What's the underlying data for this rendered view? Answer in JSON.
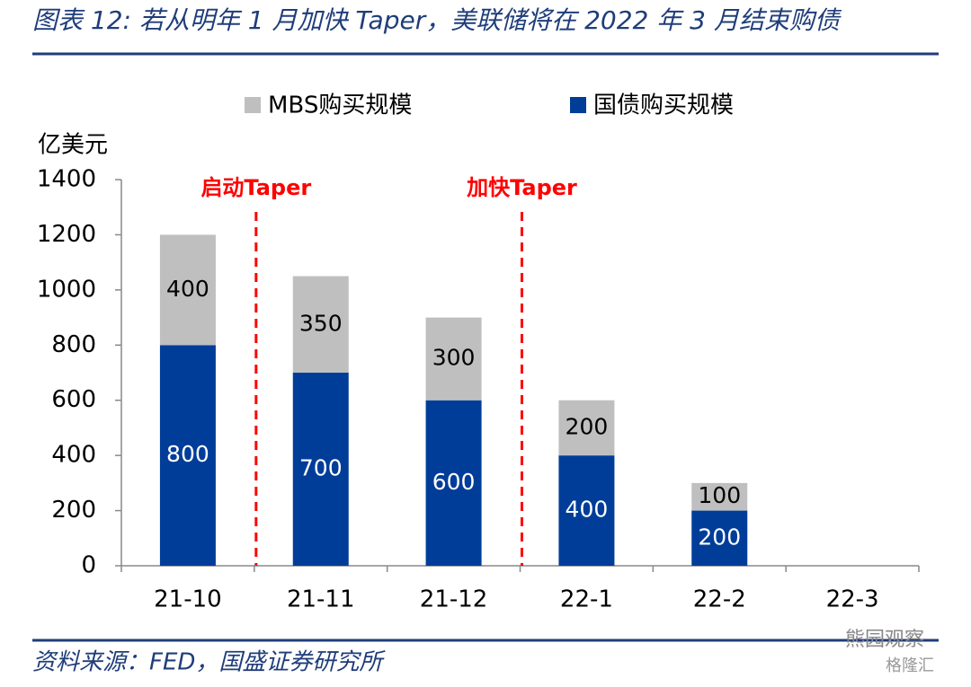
{
  "chart_data": {
    "type": "stacked_bar",
    "title": "图表 12: 若从明年 1 月加快 Taper，美联储将在 2022 年 3 月结束购债",
    "y_label": "亿美元",
    "categories": [
      "21-10",
      "21-11",
      "21-12",
      "22-1",
      "22-2",
      "22-3"
    ],
    "series": [
      {
        "name": "国债购买规模",
        "color": "#003d99",
        "values": [
          800,
          700,
          600,
          400,
          200,
          null
        ]
      },
      {
        "name": "MBS购买规模",
        "color": "#bfbfbf",
        "values": [
          400,
          350,
          300,
          200,
          100,
          null
        ]
      }
    ],
    "ylim": [
      0,
      1400
    ],
    "yticks": [
      0,
      200,
      400,
      600,
      800,
      1000,
      1200,
      1400
    ],
    "annotations": [
      {
        "text": "启动Taper",
        "color": "#ff0000"
      },
      {
        "text": "加快Taper",
        "color": "#ff0000"
      }
    ],
    "source": "资料来源：FED，国盛证券研究所",
    "watermark": [
      "熊园观察",
      "格隆汇"
    ]
  }
}
